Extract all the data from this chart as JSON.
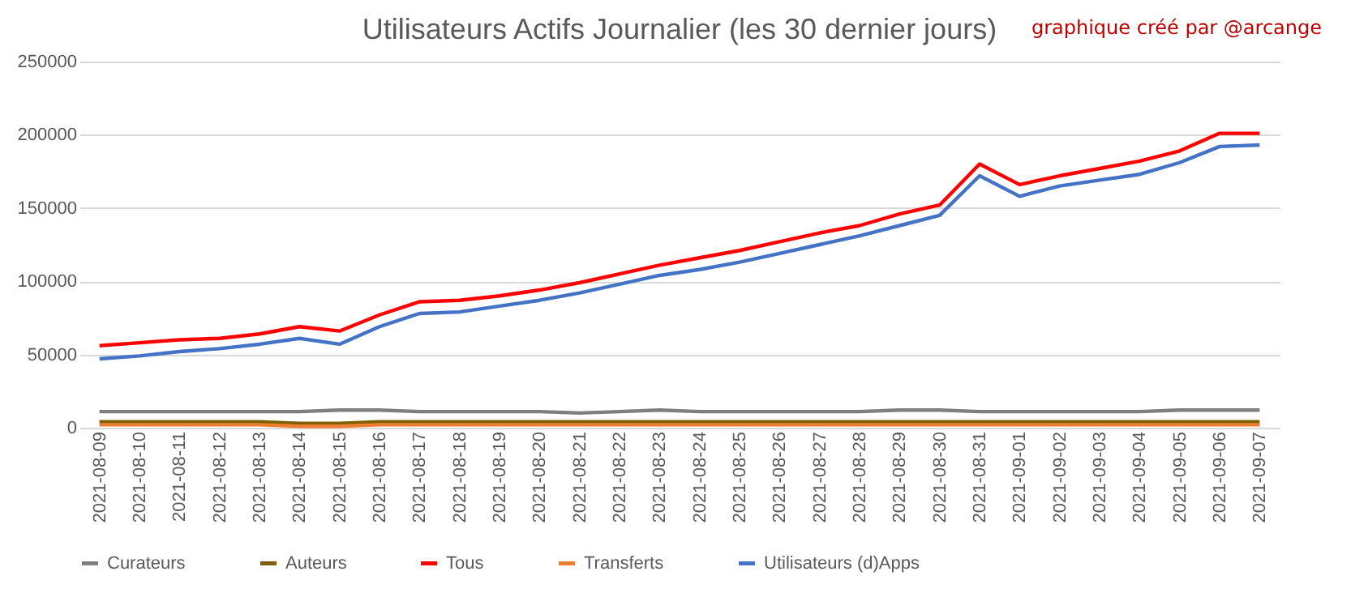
{
  "chart_data": {
    "type": "line",
    "title": "Utilisateurs Actifs Journalier (les 30 dernier jours)",
    "annotations": [
      "graphique créé par @arcange"
    ],
    "categories": [
      "2021-08-09",
      "2021-08-10",
      "2021-08-11",
      "2021-08-12",
      "2021-08-13",
      "2021-08-14",
      "2021-08-15",
      "2021-08-16",
      "2021-08-17",
      "2021-08-18",
      "2021-08-19",
      "2021-08-20",
      "2021-08-21",
      "2021-08-22",
      "2021-08-23",
      "2021-08-24",
      "2021-08-25",
      "2021-08-26",
      "2021-08-27",
      "2021-08-28",
      "2021-08-29",
      "2021-08-30",
      "2021-08-31",
      "2021-09-01",
      "2021-09-02",
      "2021-09-03",
      "2021-09-04",
      "2021-09-05",
      "2021-09-06",
      "2021-09-07"
    ],
    "ylim": [
      0,
      250000
    ],
    "yticks": [
      0,
      50000,
      100000,
      150000,
      200000,
      250000
    ],
    "grid": "y",
    "legend": "bottom",
    "line_style": "solid",
    "series": [
      {
        "name": "Curateurs",
        "color": "#7f7f7f",
        "values": [
          11000,
          11000,
          11000,
          11000,
          11000,
          11000,
          12000,
          12000,
          11000,
          11000,
          11000,
          11000,
          10000,
          11000,
          12000,
          11000,
          11000,
          11000,
          11000,
          11000,
          12000,
          12000,
          11000,
          11000,
          11000,
          11000,
          11000,
          12000,
          12000,
          12000
        ]
      },
      {
        "name": "Auteurs",
        "color": "#7f6000",
        "values": [
          4000,
          4000,
          4000,
          4000,
          4000,
          3000,
          3000,
          4000,
          4000,
          4000,
          4000,
          4000,
          4000,
          4000,
          4000,
          4000,
          4000,
          4000,
          4000,
          4000,
          4000,
          4000,
          4000,
          4000,
          4000,
          4000,
          4000,
          4000,
          4000,
          4000
        ]
      },
      {
        "name": "Tous",
        "color": "#ff0000",
        "values": [
          56000,
          58000,
          60000,
          61000,
          64000,
          69000,
          66000,
          77000,
          86000,
          87000,
          90000,
          94000,
          99000,
          105000,
          111000,
          116000,
          121000,
          127000,
          133000,
          138000,
          146000,
          152000,
          180000,
          166000,
          172000,
          177000,
          182000,
          189000,
          201000,
          201000
        ]
      },
      {
        "name": "Transferts",
        "color": "#ed7d31",
        "values": [
          2000,
          2000,
          2000,
          2000,
          2000,
          1000,
          1000,
          2000,
          2000,
          2000,
          2000,
          2000,
          2000,
          2000,
          2000,
          2000,
          2000,
          2000,
          2000,
          2000,
          2000,
          2000,
          2000,
          2000,
          2000,
          2000,
          2000,
          2000,
          2000,
          2000
        ]
      },
      {
        "name": "Utilisateurs (d)Apps",
        "color": "#4472c4",
        "values": [
          47000,
          49000,
          52000,
          54000,
          57000,
          61000,
          57000,
          69000,
          78000,
          79000,
          83000,
          87000,
          92000,
          98000,
          104000,
          108000,
          113000,
          119000,
          125000,
          131000,
          138000,
          145000,
          172000,
          158000,
          165000,
          169000,
          173000,
          181000,
          192000,
          193000
        ]
      }
    ]
  }
}
